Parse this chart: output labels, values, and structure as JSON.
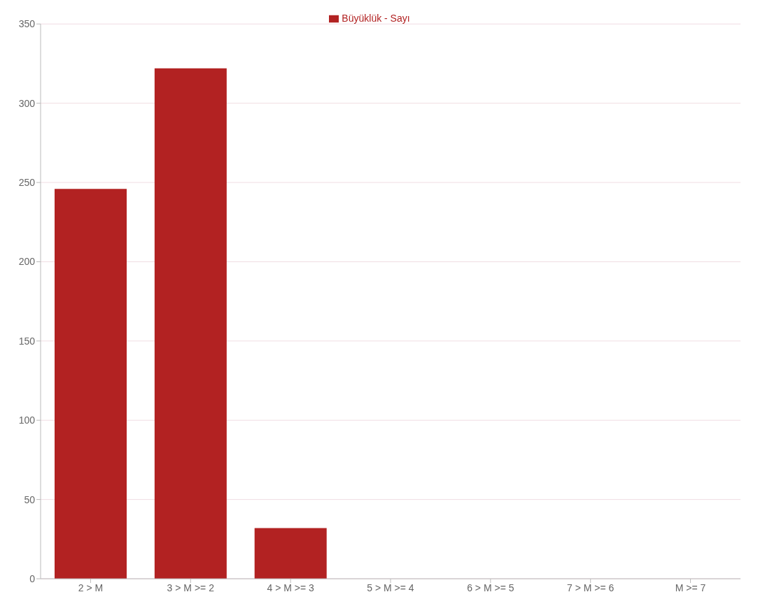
{
  "chart_data": {
    "type": "bar",
    "categories": [
      "2 > M",
      "3 > M >= 2",
      "4 > M >= 3",
      "5 > M >= 4",
      "6 > M >= 5",
      "7 > M >= 6",
      "M >= 7"
    ],
    "series": [
      {
        "name": "Büyüklük - Sayı",
        "color": "#b22222",
        "values": [
          246,
          322,
          32,
          0,
          0,
          0,
          0
        ]
      }
    ],
    "ylim": [
      0,
      350
    ],
    "yticks": [
      0,
      50,
      100,
      150,
      200,
      250,
      300,
      350
    ],
    "grid": "y",
    "legend": "top"
  }
}
